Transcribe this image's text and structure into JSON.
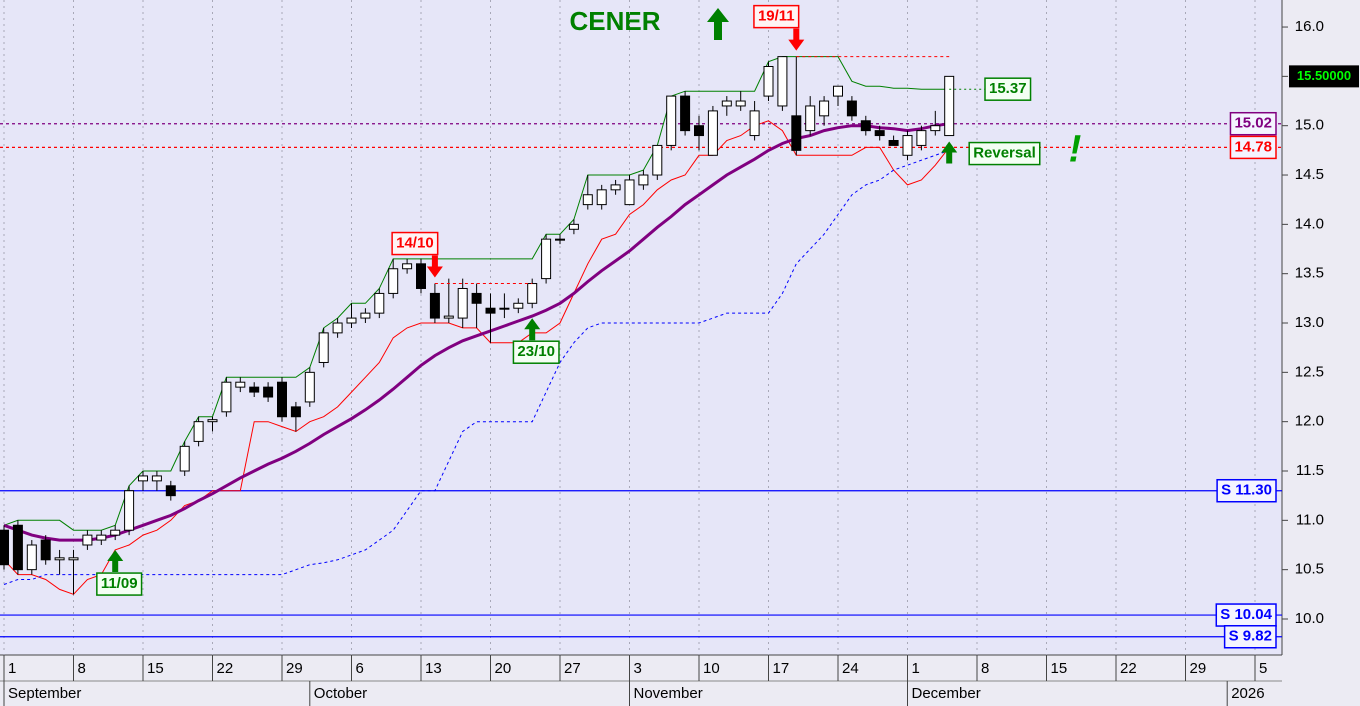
{
  "chart_data": {
    "type": "candlestick",
    "title": "CENER",
    "categories": [
      "1",
      null,
      null,
      null,
      null,
      "8",
      null,
      null,
      null,
      null,
      "15",
      null,
      null,
      null,
      null,
      "22",
      null,
      null,
      null,
      null,
      "29",
      null,
      null,
      null,
      null,
      "6",
      null,
      null,
      null,
      null,
      "13",
      null,
      null,
      null,
      null,
      "20",
      null,
      null,
      null,
      null,
      "27",
      null,
      null,
      null,
      null,
      "3",
      null,
      null,
      null,
      null,
      "10",
      null,
      null,
      null,
      null,
      "17",
      null,
      null,
      null,
      null,
      "24",
      null,
      null,
      null,
      null,
      "1",
      null,
      null,
      null,
      null,
      "8",
      null,
      null,
      null,
      null,
      "15",
      null,
      null,
      null,
      null,
      "22",
      null,
      null,
      null,
      null,
      "29",
      null,
      null,
      null,
      null,
      "5"
    ],
    "months": [
      {
        "label": "September",
        "at": 0
      },
      {
        "label": "October",
        "at": 22
      },
      {
        "label": "November",
        "at": 45
      },
      {
        "label": "December",
        "at": 65
      },
      {
        "label": "2026",
        "at": 88
      }
    ],
    "open": [
      10.9,
      10.95,
      10.5,
      10.8,
      10.6,
      10.6,
      10.75,
      10.8,
      10.85,
      10.9,
      11.4,
      11.4,
      11.35,
      11.5,
      11.8,
      12.0,
      12.1,
      12.35,
      12.35,
      12.35,
      12.4,
      12.15,
      12.2,
      12.6,
      12.9,
      13.0,
      13.05,
      13.1,
      13.3,
      13.55,
      13.6,
      13.3,
      13.05,
      13.05,
      13.3,
      13.15,
      13.15,
      13.15,
      13.2,
      13.45,
      13.85,
      13.95,
      14.2,
      14.2,
      14.35,
      14.2,
      14.4,
      14.5,
      14.8,
      15.3,
      15.0,
      14.7,
      15.2,
      15.2,
      14.9,
      15.3,
      15.2,
      15.1,
      14.95,
      15.1,
      15.3,
      15.25,
      15.05,
      14.95,
      14.85,
      14.7,
      14.8,
      14.95,
      14.9,
      null,
      null,
      null,
      null,
      null,
      null,
      null,
      null,
      null,
      null,
      null,
      null,
      null,
      null,
      null,
      null,
      null,
      null,
      null,
      null,
      null,
      null
    ],
    "high": [
      10.95,
      11.0,
      10.8,
      10.85,
      10.7,
      10.7,
      10.9,
      10.9,
      10.95,
      11.35,
      11.5,
      11.5,
      11.4,
      11.8,
      12.05,
      12.05,
      12.45,
      12.45,
      12.4,
      12.4,
      12.45,
      12.2,
      12.55,
      12.95,
      13.05,
      13.2,
      13.15,
      13.35,
      13.65,
      13.65,
      13.65,
      13.4,
      13.45,
      13.45,
      13.4,
      13.3,
      13.3,
      13.25,
      13.45,
      13.9,
      13.9,
      14.05,
      14.5,
      14.4,
      14.45,
      14.5,
      14.55,
      14.8,
      15.3,
      15.35,
      15.1,
      15.2,
      15.3,
      15.35,
      15.25,
      15.65,
      15.7,
      15.7,
      15.3,
      15.3,
      15.4,
      15.3,
      15.1,
      15.0,
      14.9,
      14.95,
      15.0,
      15.15,
      15.5,
      null,
      null,
      null,
      null,
      null,
      null,
      null,
      null,
      null,
      null,
      null,
      null,
      null,
      null,
      null,
      null,
      null,
      null,
      null,
      null,
      null,
      null
    ],
    "low": [
      10.5,
      10.45,
      10.45,
      10.55,
      10.45,
      10.25,
      10.7,
      10.75,
      10.8,
      10.85,
      11.3,
      11.3,
      11.2,
      11.45,
      11.75,
      11.9,
      12.05,
      12.3,
      12.25,
      12.2,
      12.0,
      11.9,
      12.15,
      12.55,
      12.85,
      12.95,
      13.0,
      13.05,
      13.25,
      13.5,
      13.3,
      13.0,
      13.0,
      12.95,
      12.95,
      12.8,
      13.05,
      13.1,
      13.15,
      13.4,
      13.8,
      13.9,
      14.15,
      14.15,
      14.3,
      14.2,
      14.35,
      14.45,
      14.75,
      14.9,
      14.75,
      14.7,
      15.1,
      15.15,
      14.85,
      15.25,
      15.15,
      14.7,
      14.9,
      15.0,
      15.2,
      15.05,
      14.9,
      14.85,
      14.8,
      14.65,
      14.75,
      14.9,
      14.9,
      null,
      null,
      null,
      null,
      null,
      null,
      null,
      null,
      null,
      null,
      null,
      null,
      null,
      null,
      null,
      null,
      null,
      null,
      null,
      null,
      null,
      null
    ],
    "close": [
      10.55,
      10.5,
      10.75,
      10.6,
      10.62,
      10.62,
      10.85,
      10.85,
      10.9,
      11.3,
      11.45,
      11.45,
      11.25,
      11.75,
      12.0,
      12.02,
      12.4,
      12.4,
      12.3,
      12.25,
      12.05,
      12.05,
      12.5,
      12.9,
      13.0,
      13.05,
      13.1,
      13.3,
      13.55,
      13.6,
      13.35,
      13.05,
      13.07,
      13.35,
      13.2,
      13.1,
      13.15,
      13.2,
      13.4,
      13.85,
      13.85,
      14.0,
      14.3,
      14.35,
      14.4,
      14.45,
      14.5,
      14.8,
      15.3,
      14.95,
      14.9,
      15.15,
      15.25,
      15.25,
      15.15,
      15.6,
      15.7,
      14.75,
      15.2,
      15.25,
      15.4,
      15.1,
      14.95,
      14.9,
      14.8,
      14.9,
      14.95,
      15.0,
      15.5,
      null,
      null,
      null,
      null,
      null,
      null,
      null,
      null,
      null,
      null,
      null,
      null,
      null,
      null,
      null,
      null,
      null,
      null,
      null,
      null,
      null,
      null
    ],
    "lines": [
      {
        "color": "#008000",
        "width": 1,
        "dash": false,
        "values": [
          10.95,
          11.0,
          11.0,
          11.0,
          11.0,
          10.9,
          10.9,
          10.9,
          10.95,
          11.35,
          11.5,
          11.5,
          11.5,
          11.8,
          12.05,
          12.05,
          12.45,
          12.45,
          12.45,
          12.45,
          12.45,
          12.45,
          12.55,
          12.95,
          13.05,
          13.2,
          13.2,
          13.35,
          13.65,
          13.65,
          13.65,
          13.65,
          13.65,
          13.65,
          13.65,
          13.65,
          13.65,
          13.65,
          13.65,
          13.9,
          13.9,
          14.05,
          14.5,
          14.5,
          14.5,
          14.5,
          14.55,
          14.8,
          15.3,
          15.35,
          15.35,
          15.35,
          15.35,
          15.35,
          15.35,
          15.65,
          15.7,
          15.7,
          15.7,
          15.7,
          15.7,
          15.45,
          15.4,
          15.4,
          15.38,
          15.38,
          15.37,
          15.37,
          15.37,
          null,
          null,
          null,
          null,
          null,
          null,
          null,
          null,
          null,
          null,
          null,
          null,
          null,
          null,
          null,
          null,
          null,
          null,
          null,
          null,
          null,
          null
        ]
      },
      {
        "color": "#ff0000",
        "width": 1,
        "dash": false,
        "values": [
          10.6,
          10.45,
          10.45,
          10.4,
          10.3,
          10.25,
          10.4,
          10.45,
          10.7,
          10.75,
          10.85,
          10.9,
          11.0,
          11.15,
          11.2,
          11.3,
          11.3,
          11.3,
          12.0,
          12.0,
          11.95,
          11.9,
          12.0,
          12.05,
          12.15,
          12.3,
          12.45,
          12.6,
          12.85,
          12.95,
          13.0,
          13.0,
          13.0,
          12.95,
          12.95,
          12.8,
          12.8,
          12.8,
          12.9,
          12.9,
          13.0,
          13.3,
          13.6,
          13.85,
          13.9,
          14.1,
          14.2,
          14.35,
          14.45,
          14.5,
          14.7,
          14.7,
          14.85,
          14.9,
          15.0,
          15.05,
          14.95,
          14.7,
          14.7,
          14.7,
          14.7,
          14.7,
          14.78,
          14.78,
          14.55,
          14.4,
          14.45,
          14.6,
          14.78,
          null,
          null,
          null,
          null,
          null,
          null,
          null,
          null,
          null,
          null,
          null,
          null,
          null,
          null,
          null,
          null,
          null,
          null,
          null,
          null,
          null,
          null
        ]
      },
      {
        "color": "#800080",
        "width": 3,
        "dash": false,
        "values": [
          10.95,
          10.9,
          10.85,
          10.82,
          10.8,
          10.8,
          10.8,
          10.82,
          10.85,
          10.9,
          10.95,
          11.0,
          11.05,
          11.12,
          11.2,
          11.27,
          11.35,
          11.43,
          11.5,
          11.57,
          11.63,
          11.7,
          11.78,
          11.87,
          11.95,
          12.03,
          12.12,
          12.22,
          12.33,
          12.45,
          12.57,
          12.67,
          12.75,
          12.82,
          12.87,
          12.92,
          12.97,
          13.02,
          13.07,
          13.13,
          13.2,
          13.3,
          13.42,
          13.53,
          13.63,
          13.73,
          13.85,
          13.97,
          14.08,
          14.2,
          14.3,
          14.4,
          14.5,
          14.58,
          14.66,
          14.75,
          14.82,
          14.87,
          14.9,
          14.95,
          14.98,
          15.0,
          15.0,
          14.98,
          14.97,
          14.95,
          14.97,
          15.0,
          15.02,
          null,
          null,
          null,
          null,
          null,
          null,
          null,
          null,
          null,
          null,
          null,
          null,
          null,
          null,
          null,
          null,
          null,
          null,
          null,
          null,
          null,
          null
        ]
      },
      {
        "color": "#0000ff",
        "width": 1,
        "dash": true,
        "values": [
          10.35,
          10.4,
          10.4,
          10.45,
          10.45,
          10.45,
          10.45,
          10.45,
          10.45,
          10.45,
          10.45,
          10.45,
          10.45,
          10.45,
          10.45,
          10.45,
          10.45,
          10.45,
          10.45,
          10.45,
          10.45,
          10.5,
          10.55,
          10.57,
          10.6,
          10.65,
          10.7,
          10.8,
          10.9,
          11.1,
          11.3,
          11.3,
          11.6,
          11.9,
          12.0,
          12.0,
          12.0,
          12.0,
          12.0,
          12.3,
          12.6,
          12.8,
          12.95,
          13.0,
          13.0,
          13.0,
          13.0,
          13.0,
          13.0,
          13.0,
          13.0,
          13.05,
          13.1,
          13.1,
          13.1,
          13.1,
          13.3,
          13.6,
          13.75,
          13.9,
          14.1,
          14.3,
          14.4,
          14.45,
          14.55,
          14.6,
          14.65,
          14.7,
          14.75,
          null,
          null,
          null,
          null,
          null,
          null,
          null,
          null,
          null,
          null,
          null,
          null,
          null,
          null,
          null,
          null,
          null,
          null,
          null,
          null,
          null,
          null
        ]
      }
    ],
    "ylim": [
      9.635,
      16.274
    ],
    "yticks": [
      {
        "value": 10,
        "label": "10.0"
      },
      {
        "value": 10.5,
        "label": "10.5"
      },
      {
        "value": 11,
        "label": "11.0"
      },
      {
        "value": 11.5,
        "label": "11.5"
      },
      {
        "value": 12,
        "label": "12.0"
      },
      {
        "value": 12.5,
        "label": "12.5"
      },
      {
        "value": 13,
        "label": "13.0"
      },
      {
        "value": 13.5,
        "label": "13.5"
      },
      {
        "value": 14,
        "label": "14.0"
      },
      {
        "value": 14.5,
        "label": "14.5"
      },
      {
        "value": 15,
        "label": "15.0"
      },
      {
        "value": 15.5,
        "label": "15.5"
      },
      {
        "value": 16,
        "label": "16.0"
      }
    ],
    "levels": [
      {
        "label": "S 11.30",
        "value": 11.3,
        "color": "#0000ff"
      },
      {
        "label": "S 10.04",
        "value": 10.04,
        "color": "#0000ff"
      },
      {
        "label": "S 9.82",
        "value": 9.82,
        "color": "#0000ff"
      }
    ],
    "price_lines": [
      {
        "label": "15.02",
        "value": 15.02,
        "color": "#800080"
      },
      {
        "label": "14.78",
        "value": 14.78,
        "color": "#ff0000"
      }
    ],
    "last_price": {
      "label": "15.50000",
      "value": 15.5
    },
    "upper_label": {
      "label": "15.37",
      "value": 15.37,
      "color": "#008000"
    },
    "signals": [
      {
        "label": "11/09",
        "at": 8,
        "dir": "up"
      },
      {
        "label": "14/10",
        "at": 31,
        "dir": "down"
      },
      {
        "label": "23/10",
        "at": 38,
        "dir": "up"
      },
      {
        "label": "19/11",
        "at": 57,
        "dir": "down"
      }
    ],
    "reversal": {
      "label": "Reversal",
      "at": 68,
      "mark": "!"
    },
    "grid": true
  }
}
